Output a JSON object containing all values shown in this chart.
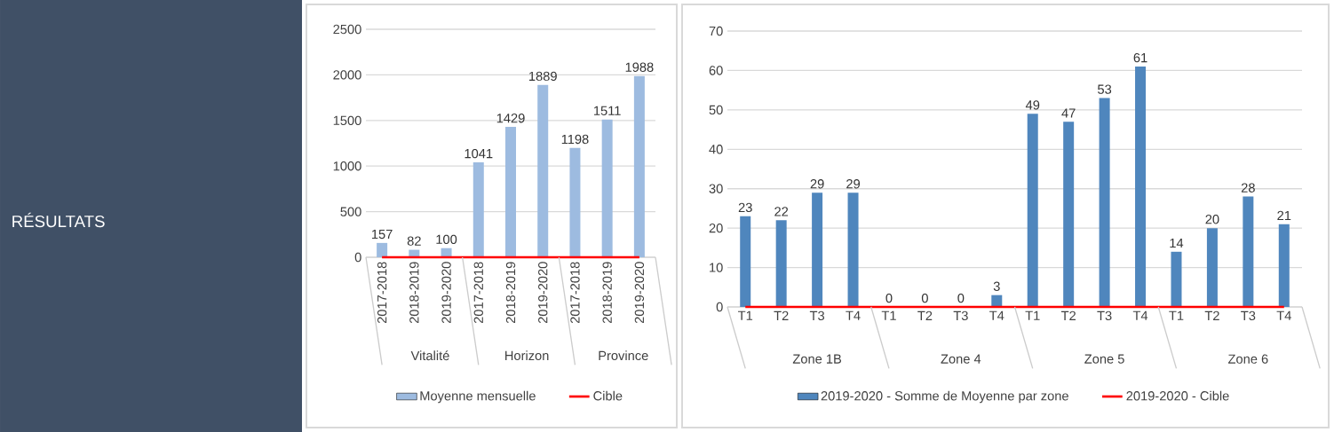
{
  "chart_data": [
    {
      "type": "other",
      "title": "RÉSULTATS"
    },
    {
      "type": "bar",
      "categories": [
        "2017-2018",
        "2018-2019",
        "2019-2020",
        "2017-2018",
        "2018-2019",
        "2019-2020",
        "2017-2018",
        "2018-2019",
        "2019-2020"
      ],
      "series": [
        {
          "name": "Moyenne mensuelle",
          "type": "bar",
          "color": "#9dbbe0",
          "values": [
            157,
            82,
            100,
            1041,
            1429,
            1889,
            1198,
            1511,
            1988
          ],
          "value_labels": [
            "157",
            "82",
            "100",
            "1041",
            "1429",
            "1889",
            "1198",
            "1511",
            "1988"
          ]
        },
        {
          "name": "Cible",
          "type": "line",
          "color": "#ff0000",
          "values": [
            0,
            0,
            0,
            0,
            0,
            0,
            0,
            0,
            0
          ]
        }
      ],
      "annotations": [
        "Vitalité",
        "Horizon",
        "Province"
      ],
      "ylim": [
        0,
        2500
      ],
      "yticks": [
        0,
        500,
        1000,
        1500,
        2000,
        2500
      ],
      "grid": "y",
      "legend": "bottom"
    },
    {
      "type": "bar",
      "categories": [
        "T1",
        "T2",
        "T3",
        "T4",
        "T1",
        "T2",
        "T3",
        "T4",
        "T1",
        "T2",
        "T3",
        "T4",
        "T1",
        "T2",
        "T3",
        "T4"
      ],
      "series": [
        {
          "name": "2019-2020 - Somme de Moyenne par zone",
          "type": "bar",
          "color": "#4f86bd",
          "values": [
            23,
            22,
            29,
            29,
            0,
            0,
            0,
            3,
            49,
            47,
            53,
            61,
            14,
            20,
            28,
            21
          ],
          "value_labels": [
            "23",
            "22",
            "29",
            "29",
            "0",
            "0",
            "0",
            "3",
            "49",
            "47",
            "53",
            "61",
            "14",
            "20",
            "28",
            "21"
          ]
        },
        {
          "name": "2019-2020 - Cible",
          "type": "line",
          "color": "#ff0000",
          "values": [
            0,
            0,
            0,
            0,
            0,
            0,
            0,
            0,
            0,
            0,
            0,
            0,
            0,
            0,
            0,
            0
          ]
        }
      ],
      "annotations": [
        "Zone 1B",
        "Zone 4",
        "Zone 5",
        "Zone 6"
      ],
      "ylim": [
        0,
        70
      ],
      "yticks": [
        0,
        10,
        20,
        30,
        40,
        50,
        60,
        70
      ],
      "grid": "y",
      "legend": "bottom"
    }
  ]
}
